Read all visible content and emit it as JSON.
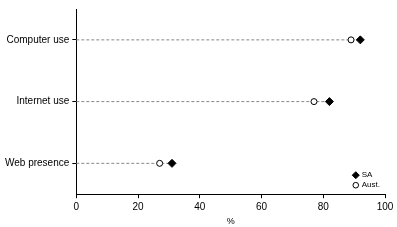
{
  "chart_data": {
    "type": "dot",
    "orientation": "horizontal",
    "categories": [
      "Computer use",
      "Internet use",
      "Web presence"
    ],
    "series": [
      {
        "name": "SA",
        "color": "#000000",
        "marker": "diamond",
        "values": [
          92,
          82,
          31
        ]
      },
      {
        "name": "Aust.",
        "color": "#000000",
        "marker": "circle_open",
        "values": [
          89,
          77,
          27
        ]
      }
    ],
    "x_label": "%",
    "xlim": [
      0,
      100
    ],
    "xticks": [
      0,
      20,
      40,
      60,
      80,
      100
    ],
    "legend": "lower right",
    "grid": false
  }
}
